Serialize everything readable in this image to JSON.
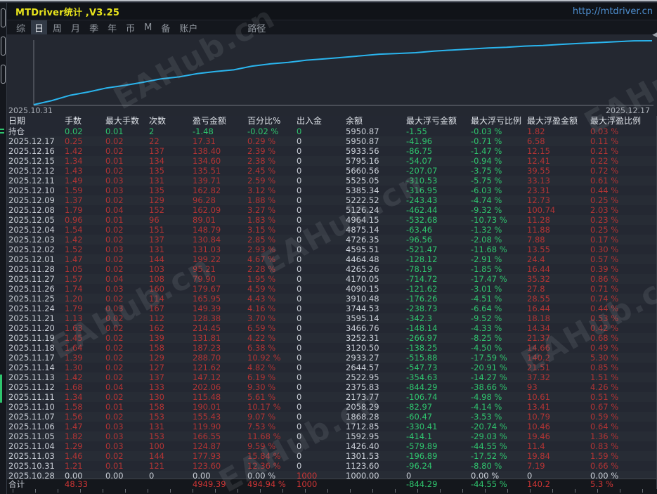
{
  "window": {
    "title": "MTDriver统计 ,V3.25",
    "url": "http://mtdriver.cn"
  },
  "menu": {
    "items": [
      {
        "label": "综",
        "selected": false
      },
      {
        "label": "日",
        "selected": true
      },
      {
        "label": "周",
        "selected": false
      },
      {
        "label": "月",
        "selected": false
      },
      {
        "label": "季",
        "selected": false
      },
      {
        "label": "年",
        "selected": false
      },
      {
        "label": "币",
        "selected": false
      },
      {
        "label": "M",
        "selected": false
      },
      {
        "label": "备",
        "selected": false
      },
      {
        "label": "账户",
        "selected": false
      },
      {
        "label": "路径",
        "selected": false,
        "gap": true
      }
    ]
  },
  "chart": {
    "start_label": "2025.10.31",
    "end_label": "2025.12.17"
  },
  "chart_data": {
    "type": "line",
    "title": "账户余额曲线 (equity curve)",
    "x_start": "2025.10.31",
    "x_end": "2025.12.17",
    "scale": "log",
    "line_color": "#2ab5ee",
    "balances": [
      1000.0,
      1123.6,
      1301.53,
      1426.4,
      1592.95,
      1712.85,
      1868.28,
      2058.29,
      2173.77,
      2375.83,
      2522.95,
      2644.57,
      2933.27,
      3120.5,
      3252.31,
      3466.76,
      3595.14,
      3744.53,
      3910.48,
      4090.15,
      4170.05,
      4265.26,
      4464.48,
      4595.51,
      4726.35,
      4875.14,
      4964.15,
      5126.24,
      5222.52,
      5385.34,
      5525.05,
      5660.56,
      5795.16,
      5933.56,
      5950.87
    ]
  },
  "table": {
    "headers": [
      "日期",
      "手数",
      "最大手数",
      "次数",
      "盈亏金额",
      "百分比%",
      "出入金",
      "余额",
      "最大浮亏金额",
      "最大浮亏比例",
      "最大浮盈金额",
      "最大浮盈比例"
    ],
    "open_row": {
      "label": "持仓",
      "v": [
        "0.02",
        "0.01",
        "2",
        "-1.48",
        "-0.02 %",
        "0",
        "5950.87",
        "-1.55",
        "-0.03 %",
        "1.82",
        "0.03 %"
      ]
    },
    "rows": [
      {
        "date": "2025.12.17",
        "type": "normal",
        "v": [
          "0.25",
          "0.02",
          "22",
          "17.31",
          "0.29 %",
          "0",
          "5950.87",
          "-41.96",
          "-0.71 %",
          "6.58",
          "0.11 %"
        ]
      },
      {
        "date": "2025.12.16",
        "type": "normal",
        "v": [
          "1.42",
          "0.02",
          "137",
          "138.40",
          "2.39 %",
          "0",
          "5933.56",
          "-86.75",
          "-1.47 %",
          "12.15",
          "0.21 %"
        ]
      },
      {
        "date": "2025.12.15",
        "type": "normal",
        "v": [
          "1.34",
          "0.01",
          "134",
          "134.60",
          "2.38 %",
          "0",
          "5795.16",
          "-54.07",
          "-0.94 %",
          "12.41",
          "0.22 %"
        ]
      },
      {
        "date": "2025.12.12",
        "type": "normal",
        "v": [
          "1.43",
          "0.02",
          "135",
          "135.51",
          "2.45 %",
          "0",
          "5660.56",
          "-207.07",
          "-3.75 %",
          "39.55",
          "0.72 %"
        ]
      },
      {
        "date": "2025.12.11",
        "type": "normal",
        "v": [
          "1.49",
          "0.03",
          "131",
          "139.71",
          "2.59 %",
          "0",
          "5525.05",
          "-310.53",
          "-5.75 %",
          "33.13",
          "0.61 %"
        ]
      },
      {
        "date": "2025.12.10",
        "type": "normal",
        "v": [
          "1.59",
          "0.03",
          "135",
          "162.82",
          "3.12 %",
          "0",
          "5385.34",
          "-316.95",
          "-6.03 %",
          "23.31",
          "0.44 %"
        ]
      },
      {
        "date": "2025.12.09",
        "type": "normal",
        "v": [
          "1.37",
          "0.02",
          "129",
          "96.28",
          "1.88 %",
          "0",
          "5222.52",
          "-243.43",
          "-4.74 %",
          "12.73",
          "0.25 %"
        ]
      },
      {
        "date": "2025.12.08",
        "type": "normal",
        "v": [
          "1.79",
          "0.04",
          "152",
          "162.09",
          "3.27 %",
          "0",
          "5126.24",
          "-462.44",
          "-9.32 %",
          "100.74",
          "2.03 %"
        ]
      },
      {
        "date": "2025.12.05",
        "type": "normal",
        "v": [
          "0.96",
          "0.01",
          "96",
          "89.01",
          "1.83 %",
          "0",
          "4964.15",
          "-532.68",
          "-10.73 %",
          "11.28",
          "0.23 %"
        ]
      },
      {
        "date": "2025.12.04",
        "type": "normal",
        "v": [
          "1.54",
          "0.02",
          "151",
          "148.79",
          "3.15 %",
          "0",
          "4875.14",
          "-63.46",
          "-1.32 %",
          "11.88",
          "0.25 %"
        ]
      },
      {
        "date": "2025.12.03",
        "type": "normal",
        "v": [
          "1.42",
          "0.02",
          "137",
          "130.84",
          "2.85 %",
          "0",
          "4726.35",
          "-96.56",
          "-2.08 %",
          "7.88",
          "0.17 %"
        ]
      },
      {
        "date": "2025.12.02",
        "type": "normal",
        "v": [
          "1.52",
          "0.03",
          "131",
          "131.03",
          "2.93 %",
          "0",
          "4595.51",
          "-521.47",
          "-11.68 %",
          "13.55",
          "0.30 %"
        ]
      },
      {
        "date": "2025.12.01",
        "type": "normal",
        "v": [
          "1.47",
          "0.02",
          "144",
          "199.22",
          "4.67 %",
          "0",
          "4464.48",
          "-128.12",
          "-2.91 %",
          "24.4",
          "0.57 %"
        ]
      },
      {
        "date": "2025.11.28",
        "type": "normal",
        "v": [
          "1.05",
          "0.02",
          "103",
          "95.21",
          "2.28 %",
          "0",
          "4265.26",
          "-78.19",
          "-1.85 %",
          "16.44",
          "0.39 %"
        ]
      },
      {
        "date": "2025.11.27",
        "type": "normal",
        "v": [
          "1.57",
          "0.04",
          "108",
          "79.90",
          "1.95 %",
          "0",
          "4170.05",
          "-714.72",
          "-17.47 %",
          "35.32",
          "0.86 %"
        ]
      },
      {
        "date": "2025.11.26",
        "type": "normal",
        "v": [
          "1.74",
          "0.03",
          "160",
          "179.67",
          "4.59 %",
          "0",
          "4090.15",
          "-121.62",
          "-3.01 %",
          "27.8",
          "0.71 %"
        ]
      },
      {
        "date": "2025.11.25",
        "type": "normal",
        "v": [
          "1.20",
          "0.02",
          "114",
          "165.95",
          "4.43 %",
          "0",
          "3910.48",
          "-176.26",
          "-4.51 %",
          "28.55",
          "0.74 %"
        ]
      },
      {
        "date": "2025.11.24",
        "type": "normal",
        "v": [
          "1.79",
          "0.03",
          "167",
          "149.39",
          "4.16 %",
          "0",
          "3744.53",
          "-238.73",
          "-6.64 %",
          "16.44",
          "0.44 %"
        ]
      },
      {
        "date": "2025.11.21",
        "type": "normal",
        "v": [
          "1.13",
          "0.02",
          "112",
          "128.38",
          "3.70 %",
          "0",
          "3595.14",
          "-342.3",
          "-9.52 %",
          "18.18",
          "0.53 %"
        ]
      },
      {
        "date": "2025.11.20",
        "type": "normal",
        "v": [
          "1.63",
          "0.02",
          "162",
          "214.45",
          "6.59 %",
          "0",
          "3466.76",
          "-148.14",
          "-4.33 %",
          "14.34",
          "0.42 %"
        ]
      },
      {
        "date": "2025.11.19",
        "type": "normal",
        "v": [
          "1.45",
          "0.02",
          "139",
          "131.81",
          "4.22 %",
          "0",
          "3252.31",
          "-266.97",
          "-8.25 %",
          "21.37",
          "0.68 %"
        ]
      },
      {
        "date": "2025.11.18",
        "type": "normal",
        "v": [
          "1.64",
          "0.02",
          "158",
          "187.23",
          "6.38 %",
          "0",
          "3120.50",
          "-138.25",
          "-4.50 %",
          "14.66",
          "0.49 %"
        ]
      },
      {
        "date": "2025.11.17",
        "type": "normal",
        "v": [
          "1.39",
          "0.02",
          "129",
          "288.70",
          "10.92 %",
          "0",
          "2933.27",
          "-515.88",
          "-17.59 %",
          "140.2",
          "5.30 %"
        ]
      },
      {
        "date": "2025.11.14",
        "type": "normal",
        "v": [
          "1.30",
          "0.02",
          "127",
          "121.62",
          "4.82 %",
          "0",
          "2644.57",
          "-547.73",
          "-20.91 %",
          "21.51",
          "0.85 %"
        ]
      },
      {
        "date": "2025.11.13",
        "type": "normal",
        "v": [
          "1.42",
          "0.02",
          "137",
          "147.12",
          "6.19 %",
          "0",
          "2522.95",
          "-354.63",
          "-14.27 %",
          "37.32",
          "1.51 %"
        ]
      },
      {
        "date": "2025.11.12",
        "type": "normal",
        "v": [
          "1.68",
          "0.04",
          "133",
          "202.06",
          "9.30 %",
          "0",
          "2375.83",
          "-844.29",
          "-38.66 %",
          "93",
          "4.26 %"
        ]
      },
      {
        "date": "2025.11.11",
        "type": "normal",
        "v": [
          "1.34",
          "0.02",
          "130",
          "115.48",
          "5.61 %",
          "0",
          "2173.77",
          "-106.74",
          "-4.98 %",
          "10.61",
          "0.51 %"
        ]
      },
      {
        "date": "2025.11.10",
        "type": "normal",
        "v": [
          "1.58",
          "0.01",
          "158",
          "190.01",
          "10.17 %",
          "0",
          "2058.29",
          "-82.97",
          "-4.14 %",
          "13.41",
          "0.67 %"
        ]
      },
      {
        "date": "2025.11.07",
        "type": "normal",
        "v": [
          "1.56",
          "0.02",
          "153",
          "155.43",
          "9.07 %",
          "0",
          "1868.28",
          "-60.47",
          "-3.53 %",
          "10.79",
          "0.59 %"
        ]
      },
      {
        "date": "2025.11.06",
        "type": "normal",
        "v": [
          "1.47",
          "0.03",
          "131",
          "119.90",
          "7.53 %",
          "0",
          "1712.85",
          "-330.41",
          "-20.74 %",
          "10.46",
          "0.64 %"
        ]
      },
      {
        "date": "2025.11.05",
        "type": "normal",
        "v": [
          "1.82",
          "0.03",
          "153",
          "166.55",
          "11.68 %",
          "0",
          "1592.95",
          "-414.1",
          "-29.03 %",
          "19.46",
          "1.36 %"
        ]
      },
      {
        "date": "2025.11.04",
        "type": "normal",
        "v": [
          "1.29",
          "0.03",
          "100",
          "124.87",
          "9.59 %",
          "0",
          "1426.40",
          "-579.89",
          "-44.55 %",
          "11.4",
          "0.83 %"
        ]
      },
      {
        "date": "2025.11.03",
        "type": "normal",
        "v": [
          "1.46",
          "0.02",
          "144",
          "177.93",
          "15.84 %",
          "0",
          "1301.53",
          "-196.89",
          "-17.52 %",
          "19.84",
          "1.59 %"
        ]
      },
      {
        "date": "2025.10.31",
        "type": "normal",
        "v": [
          "1.21",
          "0.01",
          "121",
          "123.60",
          "12.36 %",
          "0",
          "1123.60",
          "-96.24",
          "-8.80 %",
          "7.19",
          "0.66 %"
        ]
      },
      {
        "date": "2025.10.28",
        "type": "zero",
        "v": [
          "0.00",
          "0.00",
          "0",
          "0.00",
          "0.00 %",
          "1000",
          "1000.00",
          "0",
          "0.00 %",
          "0",
          "0.00 %"
        ]
      }
    ],
    "total_row": {
      "label": "合计",
      "v": [
        "48.33",
        "",
        "",
        "4949.39",
        "494.94 %",
        "1000",
        "",
        "-844.29",
        "-44.55 %",
        "140.2",
        "5.3 %"
      ]
    },
    "color_maps": {
      "open": [
        "g",
        "g",
        "g",
        "g",
        "g",
        "g",
        "w",
        "g",
        "g",
        "r",
        "r"
      ],
      "normal": [
        "r",
        "r",
        "r",
        "r",
        "r",
        "w",
        "w",
        "g",
        "g",
        "r",
        "r"
      ],
      "zero": [
        "w",
        "w",
        "w",
        "w",
        "w",
        "rb",
        "w",
        "w",
        "w",
        "w",
        "w"
      ],
      "total": [
        "rb",
        "",
        "",
        "rb",
        "rb",
        "rb",
        "",
        "g",
        "g",
        "rb",
        "rb"
      ]
    }
  },
  "watermark": {
    "text": "EAHub.cn"
  },
  "palette": {
    "bg_page": "#1c2026",
    "bg_title": "#101318",
    "bg_menu": "#14171d",
    "bg_chart": "#242831",
    "bg_table": "#242832",
    "row_alt": "#272c35",
    "bg_total": "#14171c",
    "title_yellow": "#e8e41c",
    "url_blue": "#4e8fd0",
    "menu_text": "#8f959d",
    "menu_sel_bg": "#323a46",
    "text_white": "#dfe3e9",
    "date_text": "#c9ced6",
    "red": "#b33434",
    "red_bright": "#cf3535",
    "green": "#2fc56e",
    "axis": "#70757d",
    "curve": "#2ab5ee",
    "border": "#3f444c",
    "handle": "#a8adb5",
    "wm": "rgba(160,166,176,0.15)"
  }
}
